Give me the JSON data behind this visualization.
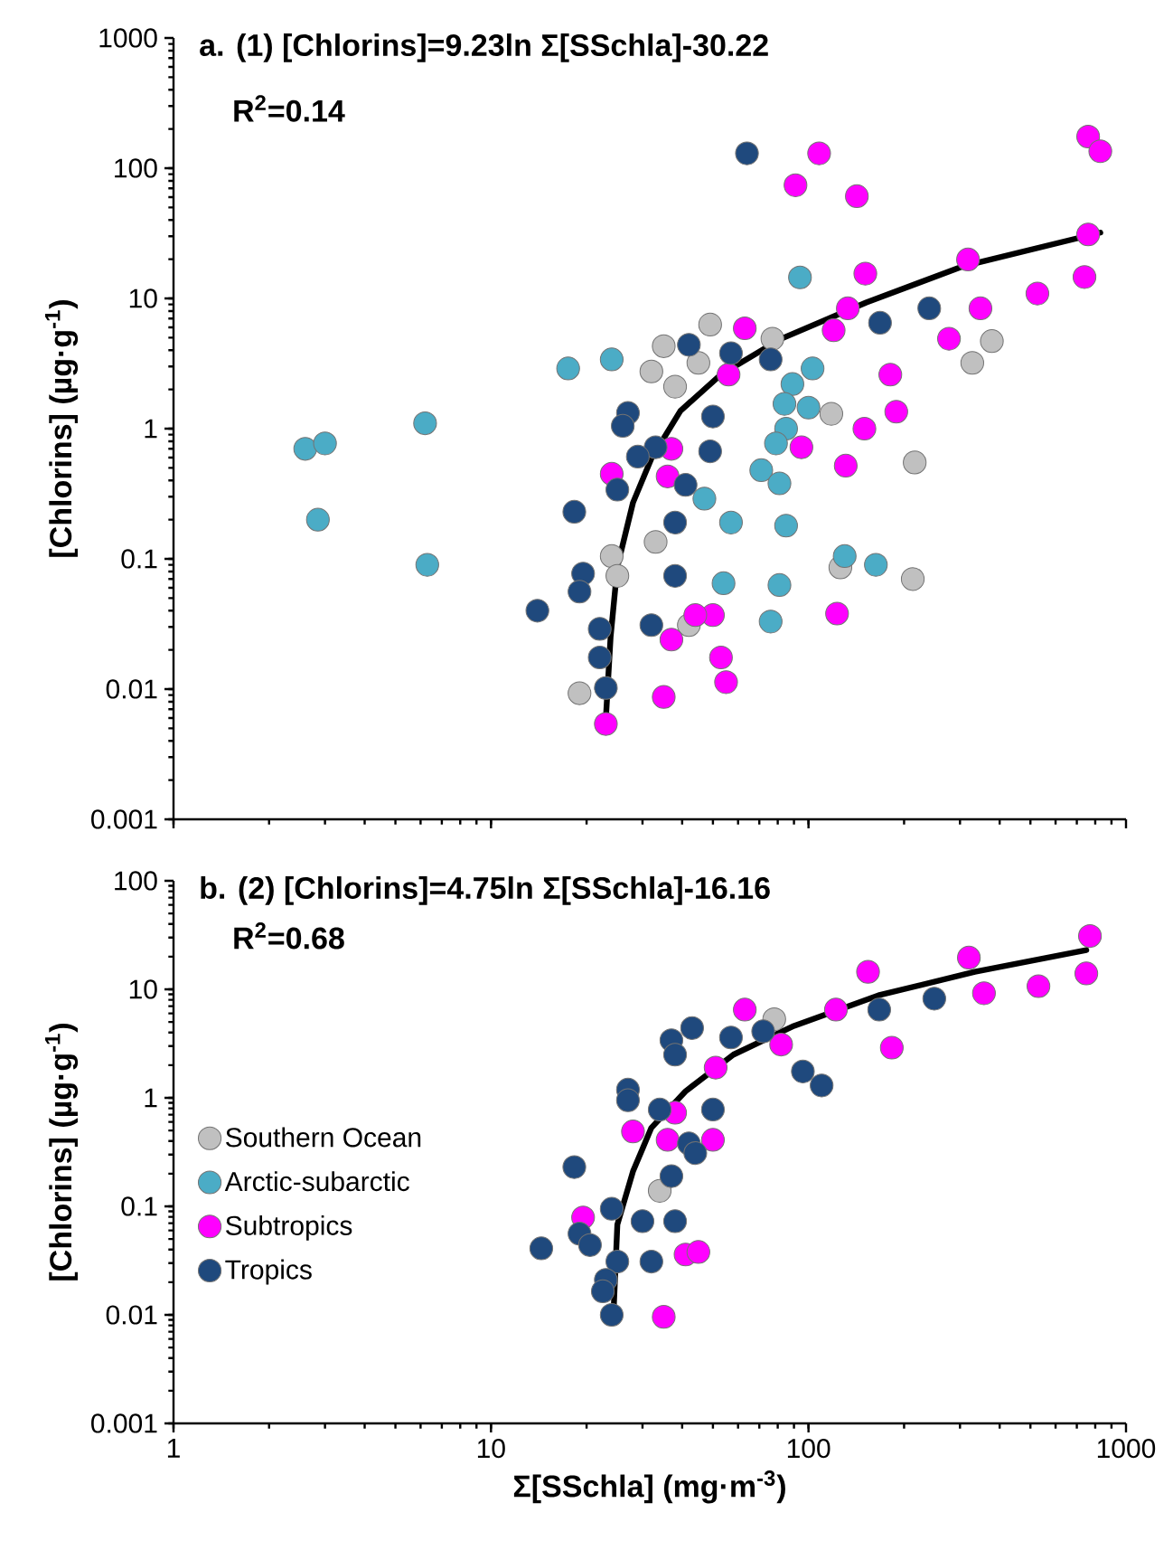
{
  "chart_data": [
    {
      "type": "scatter",
      "title": "a. (1) [Chlorins]=9.23ln Σ[SSchla]-30.22",
      "subtitle": "R$^{2}$=0.14",
      "ylabel": "[Chlorins] (µg·g$^{-1}$)",
      "log": "xy",
      "marker": "circle",
      "legend": false,
      "tick_labels": "y",
      "xlim": [
        1,
        1000
      ],
      "ylim": [
        0.001,
        1000
      ],
      "xticks": [
        {
          "value": 1,
          "label": null
        },
        {
          "value": 10,
          "label": null
        },
        {
          "value": 100,
          "label": null
        },
        {
          "value": 1000,
          "label": null
        }
      ],
      "yticks": [
        {
          "value": 0.001,
          "label": "0.001"
        },
        {
          "value": 0.01,
          "label": "0.01"
        },
        {
          "value": 0.1,
          "label": "0.1"
        },
        1,
        10,
        100,
        1000
      ],
      "series": [
        {
          "color": "#c0c0c0",
          "x": [
            49,
            35,
            32,
            38,
            45,
            77,
            118,
            216,
            378,
            328,
            33,
            24,
            25,
            126,
            213,
            42,
            19
          ],
          "values": [
            6.3,
            4.3,
            2.75,
            2.1,
            3.2,
            4.9,
            1.3,
            0.55,
            4.7,
            3.2,
            0.135,
            0.105,
            0.074,
            0.086,
            0.07,
            0.031,
            0.0093
          ]
        },
        {
          "color": "#4bacc6",
          "x": [
            2.6,
            3.0,
            2.85,
            6.2,
            6.3,
            17.5,
            24,
            94,
            103,
            89,
            84,
            100,
            85,
            79,
            71,
            81,
            47,
            57,
            85,
            54,
            81,
            76,
            130,
            163
          ],
          "values": [
            0.7,
            0.77,
            0.2,
            1.1,
            0.09,
            2.9,
            3.4,
            14.5,
            2.9,
            2.2,
            1.55,
            1.45,
            1.0,
            0.77,
            0.48,
            0.38,
            0.29,
            0.19,
            0.18,
            0.065,
            0.063,
            0.033,
            0.105,
            0.09
          ]
        },
        {
          "color": "#ff00ff",
          "x": [
            108,
            91,
            142,
            760,
            830,
            760,
            740,
            526,
            348,
            318,
            277,
            151,
            133,
            120,
            63,
            181,
            189,
            150,
            131,
            95,
            37,
            36,
            24,
            50,
            53,
            55,
            35,
            23,
            123,
            37,
            44,
            56
          ],
          "values": [
            130,
            74,
            61,
            175,
            135,
            31,
            14.6,
            10.9,
            8.4,
            19.9,
            4.9,
            15.5,
            8.4,
            5.7,
            5.9,
            2.6,
            1.35,
            1.0,
            0.52,
            0.72,
            0.7,
            0.43,
            0.45,
            0.037,
            0.0175,
            0.0113,
            0.0087,
            0.0054,
            0.038,
            0.024,
            0.037,
            2.6
          ]
        },
        {
          "color": "#1f497d",
          "x": [
            64,
            168,
            240,
            57,
            76,
            50,
            49,
            27,
            26,
            33,
            29,
            25,
            41,
            38,
            18.3,
            19.5,
            19,
            38,
            32,
            22,
            22,
            23,
            14,
            42
          ],
          "values": [
            130,
            6.5,
            8.4,
            3.8,
            3.4,
            1.24,
            0.67,
            1.32,
            1.05,
            0.72,
            0.61,
            0.34,
            0.37,
            0.19,
            0.23,
            0.077,
            0.056,
            0.074,
            0.031,
            0.029,
            0.0175,
            0.0102,
            0.04,
            4.4
          ]
        },
        {
          "type": "line",
          "marker": "none",
          "color": "#000000",
          "x": [
            23,
            23.8,
            25,
            28,
            32,
            39.5,
            53,
            82,
            152,
            305,
            830
          ],
          "values": [
            0.0059,
            0.025,
            0.087,
            0.27,
            0.59,
            1.37,
            2.6,
            4.9,
            9.3,
            17.6,
            32
          ]
        }
      ]
    },
    {
      "type": "scatter",
      "title": "b. (2) [Chlorins]=4.75ln Σ[SSchla]-16.16",
      "subtitle": "R$^{2}$=0.68",
      "xlabel": "Σ[SSchla] (mg·m$^{-3}$)",
      "ylabel": "[Chlorins] (µg·g$^{-1}$)",
      "log": "xy",
      "marker": "circle",
      "legend": "left",
      "xlim": [
        1,
        1000
      ],
      "ylim": [
        0.001,
        100
      ],
      "xticks": [
        1,
        10,
        100,
        1000
      ],
      "yticks": [
        {
          "value": 0.001,
          "label": "0.001"
        },
        {
          "value": 0.01,
          "label": "0.01"
        },
        {
          "value": 0.1,
          "label": "0.1"
        },
        1,
        10,
        100
      ],
      "series": [
        {
          "name": "Southern Ocean",
          "color": "#c0c0c0",
          "x": [
            78,
            34
          ],
          "values": [
            5.3,
            0.139
          ]
        },
        {
          "name": "Arctic-subarctic",
          "color": "#4bacc6"
        },
        {
          "name": "Subtropics",
          "color": "#ff00ff",
          "x": [
            770,
            750,
            530,
            357,
            320,
            154,
            122,
            63,
            183,
            82,
            51,
            38,
            50,
            28,
            19.5,
            41,
            45,
            35,
            36
          ],
          "values": [
            31,
            14,
            10.7,
            9.2,
            19.6,
            14.5,
            6.5,
            6.5,
            2.9,
            3.1,
            1.9,
            0.73,
            0.41,
            0.49,
            0.079,
            0.036,
            0.038,
            0.0096,
            0.41
          ]
        },
        {
          "name": "Tropics",
          "color": "#1f497d",
          "x": [
            14.4,
            18.3,
            19,
            43,
            37,
            38,
            57,
            72,
            96,
            110,
            167,
            249,
            27,
            27,
            34,
            50,
            42,
            44,
            37,
            24,
            30,
            38,
            20.5,
            25,
            32,
            23,
            22.5,
            24
          ],
          "values": [
            0.041,
            0.23,
            0.056,
            4.4,
            3.4,
            2.5,
            3.6,
            4.1,
            1.75,
            1.3,
            6.5,
            8.2,
            1.19,
            0.95,
            0.78,
            0.78,
            0.38,
            0.31,
            0.19,
            0.095,
            0.073,
            0.073,
            0.044,
            0.031,
            0.031,
            0.021,
            0.0165,
            0.01
          ]
        },
        {
          "type": "line",
          "marker": "none",
          "color": "#000000",
          "x": [
            24.3,
            25,
            28,
            32,
            41,
            58,
            90,
            166,
            334,
            750
          ],
          "values": [
            0.01,
            0.068,
            0.21,
            0.53,
            1.15,
            2.5,
            4.6,
            8.8,
            14.5,
            23
          ]
        }
      ]
    }
  ]
}
